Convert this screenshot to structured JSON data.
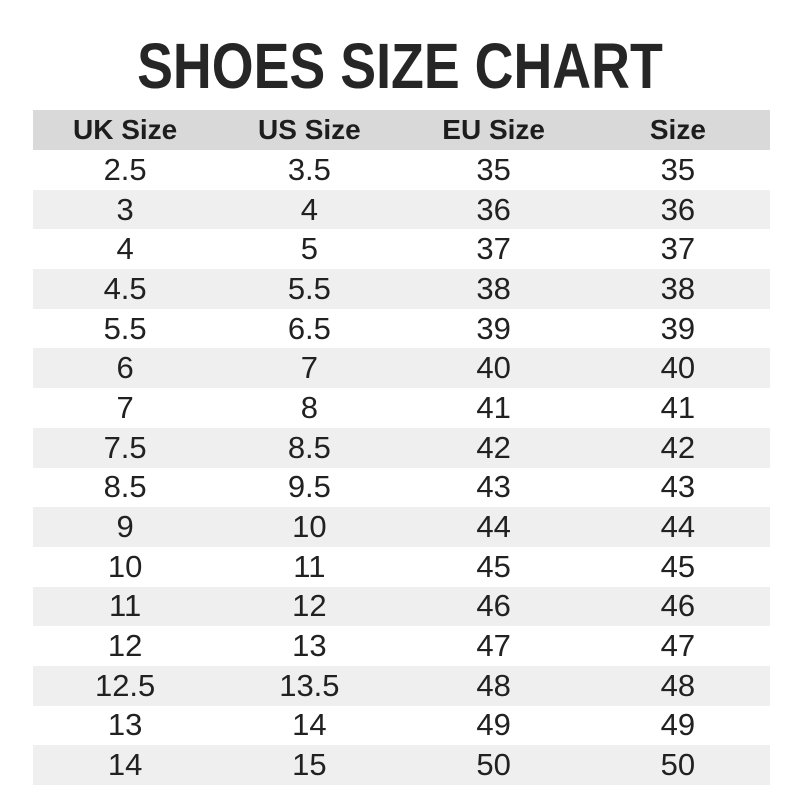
{
  "title": "SHOES SIZE CHART",
  "colors": {
    "header_bg": "#d9d9d9",
    "stripe_bg": "#efefef",
    "title_text": "#262626",
    "cell_text": "#212121"
  },
  "chart_data": {
    "type": "table",
    "title": "SHOES SIZE CHART",
    "columns": [
      "UK Size",
      "US Size",
      "EU Size",
      "Size"
    ],
    "rows": [
      [
        "2.5",
        "3.5",
        "35",
        "35"
      ],
      [
        "3",
        "4",
        "36",
        "36"
      ],
      [
        "4",
        "5",
        "37",
        "37"
      ],
      [
        "4.5",
        "5.5",
        "38",
        "38"
      ],
      [
        "5.5",
        "6.5",
        "39",
        "39"
      ],
      [
        "6",
        "7",
        "40",
        "40"
      ],
      [
        "7",
        "8",
        "41",
        "41"
      ],
      [
        "7.5",
        "8.5",
        "42",
        "42"
      ],
      [
        "8.5",
        "9.5",
        "43",
        "43"
      ],
      [
        "9",
        "10",
        "44",
        "44"
      ],
      [
        "10",
        "11",
        "45",
        "45"
      ],
      [
        "11",
        "12",
        "46",
        "46"
      ],
      [
        "12",
        "13",
        "47",
        "47"
      ],
      [
        "12.5",
        "13.5",
        "48",
        "48"
      ],
      [
        "13",
        "14",
        "49",
        "49"
      ],
      [
        "14",
        "15",
        "50",
        "50"
      ]
    ],
    "layout": {
      "striped": true,
      "header_background": "#d9d9d9",
      "stripe_background": "#efefef"
    }
  }
}
